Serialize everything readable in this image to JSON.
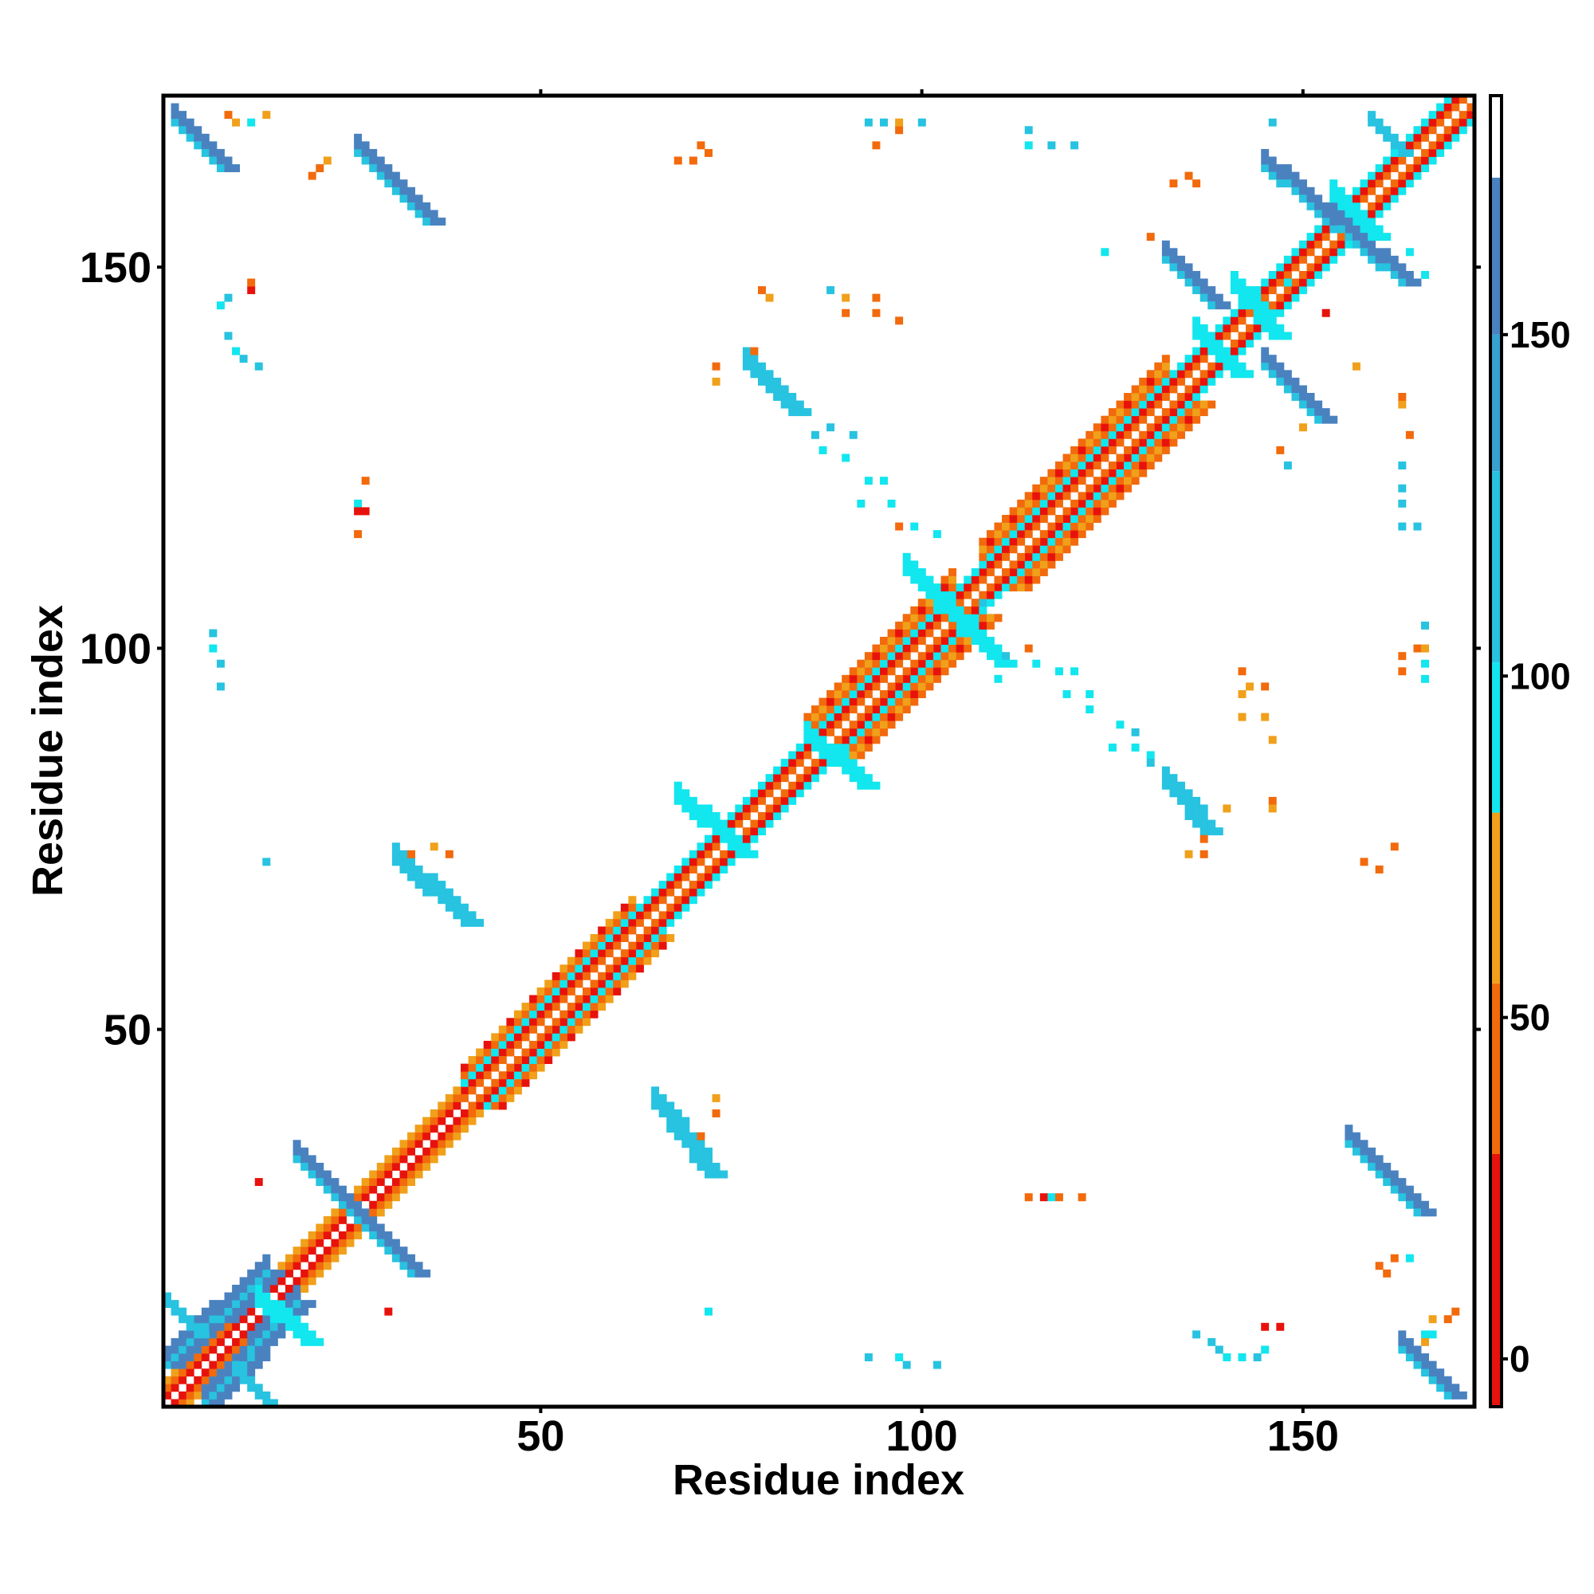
{
  "chart_data": {
    "type": "heatmap",
    "title": "",
    "xlabel": "Residue index",
    "ylabel": "Residue index",
    "xlim": [
      1,
      172
    ],
    "ylim": [
      1,
      172
    ],
    "x_ticks": [
      "50",
      "100",
      "150"
    ],
    "y_ticks": [
      "50",
      "100",
      "150"
    ],
    "x_tick_values": [
      50,
      100,
      150
    ],
    "y_tick_values": [
      50,
      100,
      150
    ],
    "colorbar": {
      "ticks": [
        "0",
        "50",
        "100",
        "150"
      ],
      "tick_values": [
        0,
        50,
        100,
        150
      ],
      "range": [
        -7,
        185
      ],
      "segments": [
        {
          "from": -7,
          "to": 30,
          "color": "#e8120c"
        },
        {
          "from": 30,
          "to": 55,
          "color": "#f26a0c"
        },
        {
          "from": 55,
          "to": 80,
          "color": "#f0a01a"
        },
        {
          "from": 80,
          "to": 102,
          "color": "#12e6ee"
        },
        {
          "from": 102,
          "to": 130,
          "color": "#27c3e0"
        },
        {
          "from": 130,
          "to": 150,
          "color": "#37a2d0"
        },
        {
          "from": 150,
          "to": 173,
          "color": "#4a82c0"
        },
        {
          "from": 173,
          "to": 185,
          "color": "#ffffff"
        }
      ]
    },
    "colors": {
      "red": "#e8120c",
      "orange": "#f26a0c",
      "amber": "#f0a01a",
      "cyan": "#12e6ee",
      "sky": "#27c3e0",
      "blue": "#4a82c0"
    },
    "diagonal": {
      "description_value": "residue i vs j, |i-j| small",
      "segments": [
        {
          "from": 1,
          "to": 40,
          "offset_colors": [
            "red",
            "orange",
            "amber"
          ]
        },
        {
          "from": 40,
          "to": 172,
          "offset_colors": [
            "orange",
            "red",
            "cyan"
          ]
        }
      ]
    },
    "helix_bands": [
      {
        "from": 40,
        "to": 62,
        "width": 4
      },
      {
        "from": 85,
        "to": 104,
        "width": 5
      },
      {
        "from": 108,
        "to": 132,
        "width": 5
      }
    ],
    "contact_blocks": [
      {
        "x1": 1,
        "y1": 6,
        "x2": 14,
        "y2": 18,
        "color": "blue",
        "w": 3
      },
      {
        "x1": 6,
        "y1": 1,
        "x2": 18,
        "y2": 14,
        "color": "blue",
        "w": 3
      },
      {
        "x1": 2,
        "y1": 169,
        "x2": 8,
        "y2": 163,
        "color": "blue",
        "w": 3
      },
      {
        "x1": 169,
        "y1": 2,
        "x2": 163,
        "y2": 8,
        "color": "blue",
        "w": 3
      },
      {
        "x1": 18,
        "y1": 33,
        "x2": 26,
        "y2": 25,
        "color": "blue",
        "w": 3
      },
      {
        "x1": 25,
        "y1": 26,
        "x2": 33,
        "y2": 18,
        "color": "blue",
        "w": 3
      },
      {
        "x1": 26,
        "y1": 165,
        "x2": 35,
        "y2": 156,
        "color": "blue",
        "w": 3
      },
      {
        "x1": 156,
        "y1": 35,
        "x2": 165,
        "y2": 26,
        "color": "blue",
        "w": 3
      },
      {
        "x1": 31,
        "y1": 72,
        "x2": 40,
        "y2": 64,
        "color": "sky",
        "w": 3
      },
      {
        "x1": 65,
        "y1": 40,
        "x2": 72,
        "y2": 31,
        "color": "sky",
        "w": 3
      },
      {
        "x1": 77,
        "y1": 137,
        "x2": 83,
        "y2": 131,
        "color": "sky",
        "w": 3
      },
      {
        "x1": 132,
        "y1": 82,
        "x2": 137,
        "y2": 76,
        "color": "sky",
        "w": 3
      },
      {
        "x1": 132,
        "y1": 151,
        "x2": 138,
        "y2": 145,
        "color": "blue",
        "w": 3
      },
      {
        "x1": 145,
        "y1": 137,
        "x2": 152,
        "y2": 130,
        "color": "blue",
        "w": 3
      },
      {
        "x1": 145,
        "y1": 163,
        "x2": 157,
        "y2": 153,
        "color": "blue",
        "w": 3
      },
      {
        "x1": 152,
        "y1": 157,
        "x2": 163,
        "y2": 148,
        "color": "blue",
        "w": 3
      },
      {
        "x1": 1,
        "y1": 14,
        "x2": 5,
        "y2": 10,
        "color": "sky",
        "w": 2
      },
      {
        "x1": 14,
        "y1": 1,
        "x2": 10,
        "y2": 5,
        "color": "sky",
        "w": 2
      },
      {
        "x1": 13,
        "y1": 14,
        "x2": 19,
        "y2": 9,
        "color": "cyan",
        "w": 3
      },
      {
        "x1": 68,
        "y1": 80,
        "x2": 76,
        "y2": 73,
        "color": "cyan",
        "w": 3
      },
      {
        "x1": 85,
        "y1": 88,
        "x2": 92,
        "y2": 82,
        "color": "cyan",
        "w": 3
      },
      {
        "x1": 98,
        "y1": 110,
        "x2": 110,
        "y2": 98,
        "color": "cyan",
        "w": 3
      },
      {
        "x1": 141,
        "y1": 147,
        "x2": 146,
        "y2": 141,
        "color": "cyan",
        "w": 3
      },
      {
        "x1": 136,
        "y1": 141,
        "x2": 141,
        "y2": 136,
        "color": "cyan",
        "w": 3
      },
      {
        "x1": 154,
        "y1": 159,
        "x2": 159,
        "y2": 154,
        "color": "cyan",
        "w": 3
      },
      {
        "x1": 159,
        "y1": 169,
        "x2": 163,
        "y2": 165,
        "color": "sky",
        "w": 2
      }
    ],
    "sparse_contacts": [
      {
        "x": 9,
        "y": 170,
        "color": "orange"
      },
      {
        "x": 10,
        "y": 169,
        "color": "amber"
      },
      {
        "x": 12,
        "y": 169,
        "color": "cyan"
      },
      {
        "x": 14,
        "y": 170,
        "color": "amber"
      },
      {
        "x": 20,
        "y": 162,
        "color": "orange"
      },
      {
        "x": 21,
        "y": 163,
        "color": "orange"
      },
      {
        "x": 22,
        "y": 164,
        "color": "amber"
      },
      {
        "x": 8,
        "y": 145,
        "color": "cyan"
      },
      {
        "x": 9,
        "y": 146,
        "color": "sky"
      },
      {
        "x": 9,
        "y": 141,
        "color": "sky"
      },
      {
        "x": 10,
        "y": 139,
        "color": "cyan"
      },
      {
        "x": 11,
        "y": 138,
        "color": "sky"
      },
      {
        "x": 13,
        "y": 137,
        "color": "sky"
      },
      {
        "x": 12,
        "y": 147,
        "color": "red"
      },
      {
        "x": 12,
        "y": 148,
        "color": "orange"
      },
      {
        "x": 7,
        "y": 102,
        "color": "sky"
      },
      {
        "x": 7,
        "y": 100,
        "color": "cyan"
      },
      {
        "x": 8,
        "y": 98,
        "color": "sky"
      },
      {
        "x": 8,
        "y": 95,
        "color": "sky"
      },
      {
        "x": 27,
        "y": 122,
        "color": "orange"
      },
      {
        "x": 26,
        "y": 119,
        "color": "cyan"
      },
      {
        "x": 26,
        "y": 118,
        "color": "red"
      },
      {
        "x": 27,
        "y": 118,
        "color": "red"
      },
      {
        "x": 26,
        "y": 115,
        "color": "orange"
      },
      {
        "x": 14,
        "y": 72,
        "color": "sky"
      },
      {
        "x": 13,
        "y": 30,
        "color": "red"
      },
      {
        "x": 30,
        "y": 13,
        "color": "red"
      },
      {
        "x": 72,
        "y": 13,
        "color": "cyan"
      },
      {
        "x": 71,
        "y": 166,
        "color": "orange"
      },
      {
        "x": 72,
        "y": 165,
        "color": "orange"
      },
      {
        "x": 70,
        "y": 164,
        "color": "orange"
      },
      {
        "x": 68,
        "y": 164,
        "color": "orange"
      },
      {
        "x": 79,
        "y": 147,
        "color": "orange"
      },
      {
        "x": 80,
        "y": 146,
        "color": "amber"
      },
      {
        "x": 78,
        "y": 139,
        "color": "orange"
      },
      {
        "x": 73,
        "y": 137,
        "color": "orange"
      },
      {
        "x": 73,
        "y": 135,
        "color": "amber"
      },
      {
        "x": 88,
        "y": 147,
        "color": "sky"
      },
      {
        "x": 90,
        "y": 146,
        "color": "amber"
      },
      {
        "x": 90,
        "y": 144,
        "color": "orange"
      },
      {
        "x": 94,
        "y": 146,
        "color": "orange"
      },
      {
        "x": 94,
        "y": 144,
        "color": "orange"
      },
      {
        "x": 97,
        "y": 143,
        "color": "orange"
      },
      {
        "x": 93,
        "y": 169,
        "color": "sky"
      },
      {
        "x": 95,
        "y": 169,
        "color": "sky"
      },
      {
        "x": 97,
        "y": 168,
        "color": "orange"
      },
      {
        "x": 97,
        "y": 169,
        "color": "amber"
      },
      {
        "x": 100,
        "y": 169,
        "color": "sky"
      },
      {
        "x": 94,
        "y": 166,
        "color": "orange"
      },
      {
        "x": 114,
        "y": 168,
        "color": "sky"
      },
      {
        "x": 114,
        "y": 166,
        "color": "cyan"
      },
      {
        "x": 117,
        "y": 166,
        "color": "sky"
      },
      {
        "x": 120,
        "y": 166,
        "color": "sky"
      },
      {
        "x": 133,
        "y": 161,
        "color": "orange"
      },
      {
        "x": 135,
        "y": 162,
        "color": "orange"
      },
      {
        "x": 136,
        "y": 161,
        "color": "orange"
      },
      {
        "x": 146,
        "y": 169,
        "color": "sky"
      },
      {
        "x": 124,
        "y": 152,
        "color": "cyan"
      },
      {
        "x": 130,
        "y": 154,
        "color": "orange"
      },
      {
        "x": 86,
        "y": 128,
        "color": "sky"
      },
      {
        "x": 88,
        "y": 129,
        "color": "sky"
      },
      {
        "x": 91,
        "y": 128,
        "color": "sky"
      },
      {
        "x": 87,
        "y": 126,
        "color": "cyan"
      },
      {
        "x": 90,
        "y": 125,
        "color": "cyan"
      },
      {
        "x": 93,
        "y": 122,
        "color": "cyan"
      },
      {
        "x": 95,
        "y": 122,
        "color": "cyan"
      },
      {
        "x": 92,
        "y": 119,
        "color": "cyan"
      },
      {
        "x": 96,
        "y": 119,
        "color": "cyan"
      },
      {
        "x": 97,
        "y": 116,
        "color": "orange"
      },
      {
        "x": 99,
        "y": 116,
        "color": "cyan"
      },
      {
        "x": 102,
        "y": 115,
        "color": "cyan"
      },
      {
        "x": 114,
        "y": 100,
        "color": "orange"
      },
      {
        "x": 115,
        "y": 98,
        "color": "cyan"
      },
      {
        "x": 118,
        "y": 97,
        "color": "cyan"
      },
      {
        "x": 119,
        "y": 94,
        "color": "cyan"
      },
      {
        "x": 122,
        "y": 94,
        "color": "cyan"
      },
      {
        "x": 122,
        "y": 92,
        "color": "cyan"
      },
      {
        "x": 126,
        "y": 90,
        "color": "cyan"
      },
      {
        "x": 128,
        "y": 89,
        "color": "sky"
      },
      {
        "x": 125,
        "y": 87,
        "color": "cyan"
      },
      {
        "x": 128,
        "y": 87,
        "color": "cyan"
      },
      {
        "x": 130,
        "y": 86,
        "color": "cyan"
      },
      {
        "x": 130,
        "y": 85,
        "color": "sky"
      },
      {
        "x": 142,
        "y": 97,
        "color": "orange"
      },
      {
        "x": 143,
        "y": 95,
        "color": "amber"
      },
      {
        "x": 145,
        "y": 95,
        "color": "orange"
      },
      {
        "x": 142,
        "y": 94,
        "color": "amber"
      },
      {
        "x": 142,
        "y": 91,
        "color": "amber"
      },
      {
        "x": 145,
        "y": 91,
        "color": "amber"
      },
      {
        "x": 146,
        "y": 88,
        "color": "amber"
      },
      {
        "x": 146,
        "y": 80,
        "color": "orange"
      },
      {
        "x": 146,
        "y": 79,
        "color": "amber"
      },
      {
        "x": 137,
        "y": 75,
        "color": "orange"
      },
      {
        "x": 135,
        "y": 73,
        "color": "amber"
      },
      {
        "x": 137,
        "y": 73,
        "color": "orange"
      },
      {
        "x": 140,
        "y": 79,
        "color": "amber"
      },
      {
        "x": 158,
        "y": 72,
        "color": "orange"
      },
      {
        "x": 160,
        "y": 71,
        "color": "orange"
      },
      {
        "x": 162,
        "y": 74,
        "color": "orange"
      },
      {
        "x": 160,
        "y": 19,
        "color": "orange"
      },
      {
        "x": 162,
        "y": 20,
        "color": "orange"
      },
      {
        "x": 164,
        "y": 20,
        "color": "cyan"
      },
      {
        "x": 161,
        "y": 18,
        "color": "orange"
      },
      {
        "x": 167,
        "y": 12,
        "color": "amber"
      },
      {
        "x": 169,
        "y": 12,
        "color": "orange"
      },
      {
        "x": 166,
        "y": 10,
        "color": "cyan"
      },
      {
        "x": 167,
        "y": 10,
        "color": "cyan"
      },
      {
        "x": 166,
        "y": 9,
        "color": "amber"
      },
      {
        "x": 170,
        "y": 13,
        "color": "orange"
      },
      {
        "x": 136,
        "y": 10,
        "color": "sky"
      },
      {
        "x": 138,
        "y": 9,
        "color": "sky"
      },
      {
        "x": 139,
        "y": 8,
        "color": "sky"
      },
      {
        "x": 140,
        "y": 7,
        "color": "cyan"
      },
      {
        "x": 142,
        "y": 7,
        "color": "cyan"
      },
      {
        "x": 144,
        "y": 7,
        "color": "sky"
      },
      {
        "x": 145,
        "y": 8,
        "color": "cyan"
      },
      {
        "x": 145,
        "y": 11,
        "color": "red"
      },
      {
        "x": 147,
        "y": 11,
        "color": "red"
      },
      {
        "x": 114,
        "y": 28,
        "color": "orange"
      },
      {
        "x": 116,
        "y": 28,
        "color": "red"
      },
      {
        "x": 117,
        "y": 28,
        "color": "cyan"
      },
      {
        "x": 118,
        "y": 28,
        "color": "orange"
      },
      {
        "x": 121,
        "y": 28,
        "color": "orange"
      },
      {
        "x": 93,
        "y": 7,
        "color": "sky"
      },
      {
        "x": 97,
        "y": 7,
        "color": "cyan"
      },
      {
        "x": 98,
        "y": 6,
        "color": "sky"
      },
      {
        "x": 102,
        "y": 6,
        "color": "sky"
      },
      {
        "x": 164,
        "y": 128,
        "color": "orange"
      },
      {
        "x": 163,
        "y": 132,
        "color": "amber"
      },
      {
        "x": 163,
        "y": 133,
        "color": "orange"
      },
      {
        "x": 163,
        "y": 124,
        "color": "sky"
      },
      {
        "x": 163,
        "y": 121,
        "color": "sky"
      },
      {
        "x": 163,
        "y": 119,
        "color": "sky"
      },
      {
        "x": 163,
        "y": 116,
        "color": "sky"
      },
      {
        "x": 165,
        "y": 116,
        "color": "sky"
      },
      {
        "x": 166,
        "y": 103,
        "color": "sky"
      },
      {
        "x": 165,
        "y": 100,
        "color": "orange"
      },
      {
        "x": 166,
        "y": 100,
        "color": "amber"
      },
      {
        "x": 163,
        "y": 99,
        "color": "orange"
      },
      {
        "x": 166,
        "y": 98,
        "color": "cyan"
      },
      {
        "x": 163,
        "y": 97,
        "color": "orange"
      },
      {
        "x": 166,
        "y": 96,
        "color": "cyan"
      },
      {
        "x": 148,
        "y": 148,
        "color": "cyan"
      },
      {
        "x": 153,
        "y": 144,
        "color": "red"
      },
      {
        "x": 157,
        "y": 137,
        "color": "amber"
      },
      {
        "x": 150,
        "y": 129,
        "color": "amber"
      },
      {
        "x": 147,
        "y": 126,
        "color": "orange"
      },
      {
        "x": 148,
        "y": 124,
        "color": "sky"
      },
      {
        "x": 110,
        "y": 96,
        "color": "cyan"
      },
      {
        "x": 111,
        "y": 99,
        "color": "sky"
      },
      {
        "x": 108,
        "y": 106,
        "color": "sky"
      },
      {
        "x": 120,
        "y": 97,
        "color": "cyan"
      },
      {
        "x": 73,
        "y": 41,
        "color": "amber"
      },
      {
        "x": 73,
        "y": 39,
        "color": "orange"
      },
      {
        "x": 71,
        "y": 36,
        "color": "orange"
      },
      {
        "x": 38,
        "y": 73,
        "color": "orange"
      },
      {
        "x": 36,
        "y": 74,
        "color": "amber"
      },
      {
        "x": 33,
        "y": 73,
        "color": "orange"
      },
      {
        "x": 164,
        "y": 152,
        "color": "cyan"
      },
      {
        "x": 166,
        "y": 149,
        "color": "cyan"
      }
    ]
  }
}
